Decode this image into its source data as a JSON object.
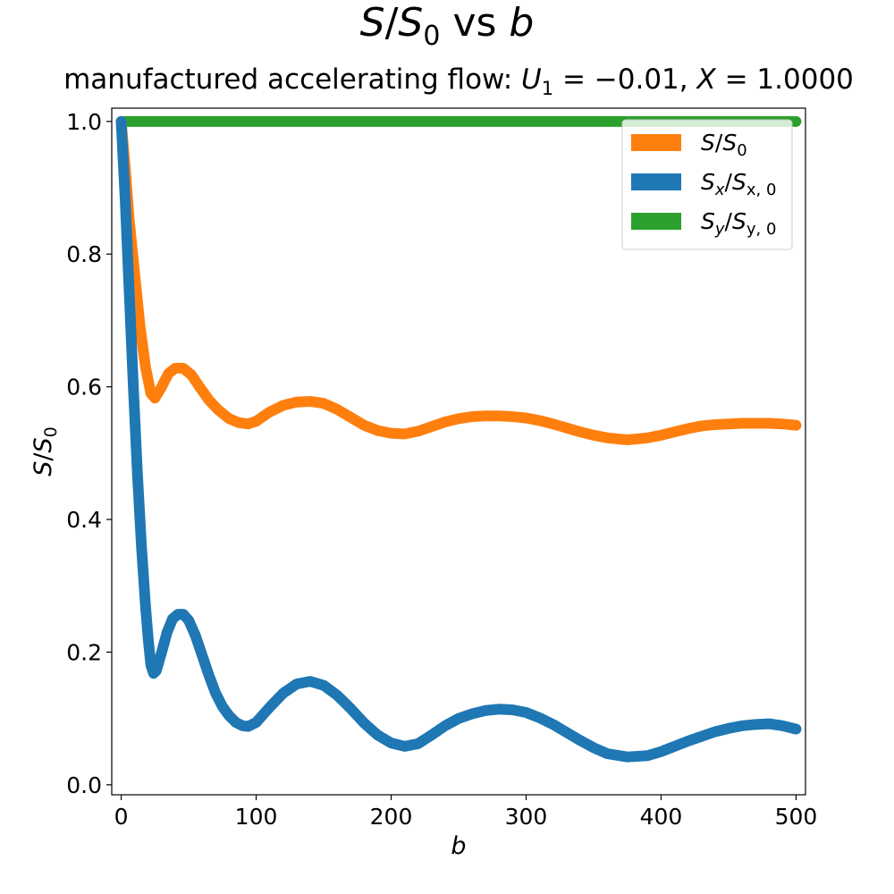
{
  "chart_data": {
    "type": "line",
    "title": "S/S0 vs b",
    "title_parts": {
      "s": "S",
      "slash": "/",
      "s0": "S",
      "sub0": "0",
      "vs": " vs ",
      "b": "b"
    },
    "subtitle": "manufactured accelerating flow: U1 = -0.01, X = 1.0000",
    "subtitle_parts": {
      "prefix": "manufactured accelerating flow: ",
      "u": "U",
      "u_sub": "1",
      "u_val": " = −0.01, ",
      "x": "X",
      "x_val": " = 1.0000"
    },
    "xlabel": "b",
    "ylabel": "S/S0",
    "ylabel_parts": {
      "s": "S",
      "slash": "/",
      "s0": "S",
      "sub": "0"
    },
    "xlim": [
      -7,
      507
    ],
    "ylim": [
      -0.015,
      1.02
    ],
    "xticks": [
      0,
      100,
      200,
      300,
      400,
      500
    ],
    "yticks": [
      0.0,
      0.2,
      0.4,
      0.6,
      0.8,
      1.0
    ],
    "xtick_labels": [
      "0",
      "100",
      "200",
      "300",
      "400",
      "500"
    ],
    "ytick_labels": [
      "0.0",
      "0.2",
      "0.4",
      "0.6",
      "0.8",
      "1.0"
    ],
    "grid": false,
    "legend_position": "top-right",
    "series": [
      {
        "name": "S/S0",
        "legend_parts": {
          "main": "S",
          "slash": "/",
          "den": "S",
          "sub": "0"
        },
        "color": "#ff7f0e",
        "x": [
          0,
          3,
          6,
          10,
          14,
          18,
          22,
          25,
          30,
          35,
          40,
          46,
          52,
          58,
          65,
          72,
          80,
          87,
          94,
          100,
          110,
          120,
          130,
          140,
          150,
          160,
          170,
          180,
          190,
          200,
          210,
          220,
          230,
          240,
          250,
          260,
          270,
          280,
          290,
          300,
          310,
          320,
          330,
          340,
          350,
          360,
          375,
          390,
          400,
          410,
          420,
          430,
          440,
          450,
          460,
          470,
          480,
          490,
          500
        ],
        "y": [
          1.0,
          0.93,
          0.85,
          0.77,
          0.69,
          0.63,
          0.59,
          0.583,
          0.6,
          0.62,
          0.628,
          0.628,
          0.618,
          0.6,
          0.58,
          0.565,
          0.552,
          0.546,
          0.544,
          0.548,
          0.562,
          0.572,
          0.577,
          0.578,
          0.575,
          0.566,
          0.554,
          0.542,
          0.534,
          0.53,
          0.529,
          0.533,
          0.54,
          0.547,
          0.552,
          0.555,
          0.556,
          0.556,
          0.555,
          0.553,
          0.549,
          0.544,
          0.538,
          0.532,
          0.527,
          0.523,
          0.52,
          0.523,
          0.527,
          0.532,
          0.537,
          0.541,
          0.543,
          0.544,
          0.545,
          0.545,
          0.545,
          0.544,
          0.542
        ]
      },
      {
        "name": "Sx/Sx,0",
        "legend_parts": {
          "main": "S",
          "mainsub": "x",
          "slash": "/",
          "den": "S",
          "sub": "x, 0"
        },
        "color": "#1f77b4",
        "x": [
          0,
          3,
          6,
          9,
          12,
          15,
          18,
          20,
          22,
          24,
          26,
          30,
          34,
          38,
          42,
          46,
          50,
          55,
          60,
          65,
          70,
          75,
          80,
          85,
          90,
          94,
          100,
          110,
          120,
          130,
          140,
          150,
          160,
          170,
          180,
          190,
          200,
          210,
          220,
          230,
          240,
          250,
          260,
          270,
          280,
          290,
          300,
          310,
          320,
          330,
          340,
          350,
          360,
          375,
          390,
          400,
          410,
          420,
          430,
          440,
          450,
          460,
          470,
          480,
          490,
          500
        ],
        "y": [
          1.0,
          0.88,
          0.74,
          0.6,
          0.47,
          0.36,
          0.27,
          0.22,
          0.18,
          0.168,
          0.172,
          0.2,
          0.23,
          0.25,
          0.257,
          0.257,
          0.248,
          0.225,
          0.195,
          0.165,
          0.138,
          0.118,
          0.104,
          0.094,
          0.089,
          0.088,
          0.094,
          0.117,
          0.138,
          0.152,
          0.156,
          0.15,
          0.135,
          0.115,
          0.093,
          0.075,
          0.063,
          0.058,
          0.062,
          0.075,
          0.089,
          0.1,
          0.107,
          0.112,
          0.114,
          0.113,
          0.109,
          0.101,
          0.091,
          0.079,
          0.067,
          0.056,
          0.047,
          0.042,
          0.044,
          0.05,
          0.058,
          0.066,
          0.073,
          0.08,
          0.085,
          0.089,
          0.091,
          0.092,
          0.089,
          0.084
        ]
      },
      {
        "name": "Sy/Sy,0",
        "legend_parts": {
          "main": "S",
          "mainsub": "y",
          "slash": "/",
          "den": "S",
          "sub": "y, 0"
        },
        "color": "#2ca02c",
        "x": [
          0,
          500
        ],
        "y": [
          1.0,
          1.0
        ]
      }
    ]
  }
}
